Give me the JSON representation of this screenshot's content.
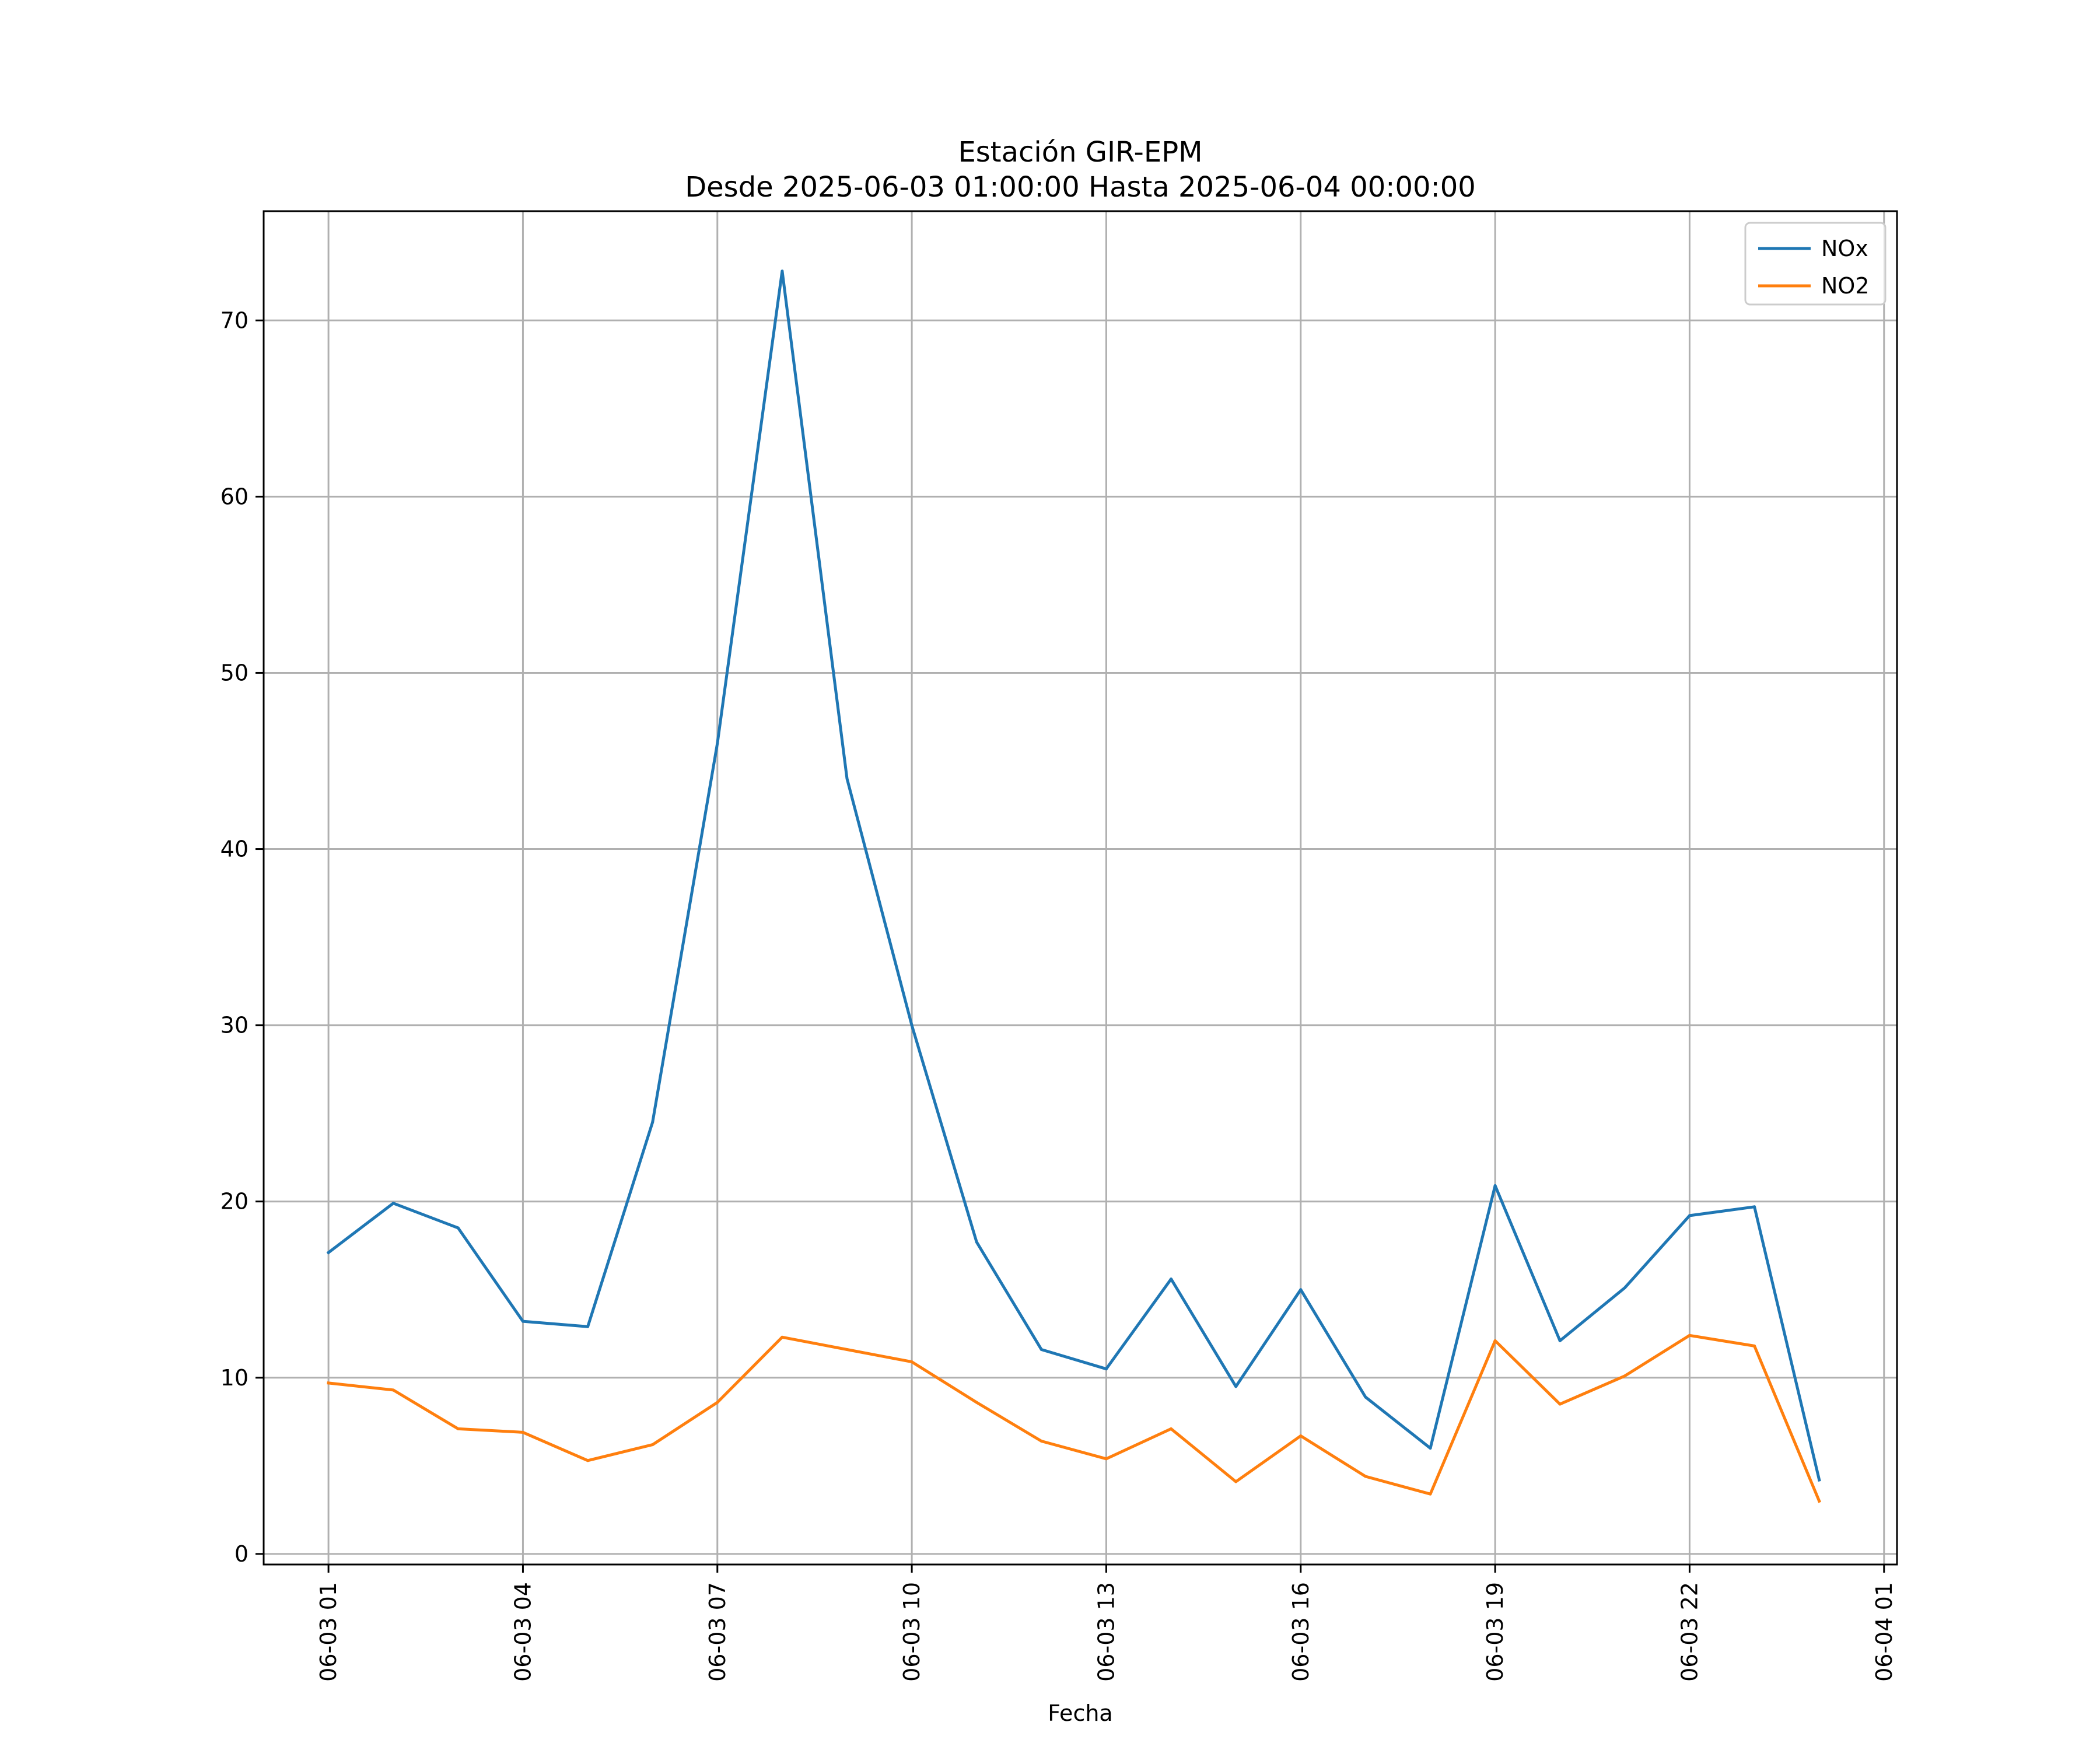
{
  "chart_data": {
    "type": "line",
    "title": "Estación GIR-EPM",
    "subtitle": "Desde 2025-06-03 01:00:00 Hasta 2025-06-04 00:00:00",
    "xlabel": "Fecha",
    "ylabel": "",
    "x": [
      "2025-06-03 01:00",
      "2025-06-03 02:00",
      "2025-06-03 03:00",
      "2025-06-03 04:00",
      "2025-06-03 05:00",
      "2025-06-03 06:00",
      "2025-06-03 07:00",
      "2025-06-03 08:00",
      "2025-06-03 09:00",
      "2025-06-03 10:00",
      "2025-06-03 11:00",
      "2025-06-03 12:00",
      "2025-06-03 13:00",
      "2025-06-03 14:00",
      "2025-06-03 15:00",
      "2025-06-03 16:00",
      "2025-06-03 17:00",
      "2025-06-03 18:00",
      "2025-06-03 19:00",
      "2025-06-03 20:00",
      "2025-06-03 21:00",
      "2025-06-03 22:00",
      "2025-06-03 23:00",
      "2025-06-04 00:00"
    ],
    "xlim": [
      "2025-06-03 00:00",
      "2025-06-04 01:12"
    ],
    "x_ticks": [
      {
        "value": "2025-06-03 01:00",
        "label": "06-03 01"
      },
      {
        "value": "2025-06-03 04:00",
        "label": "06-03 04"
      },
      {
        "value": "2025-06-03 07:00",
        "label": "06-03 07"
      },
      {
        "value": "2025-06-03 10:00",
        "label": "06-03 10"
      },
      {
        "value": "2025-06-03 13:00",
        "label": "06-03 13"
      },
      {
        "value": "2025-06-03 16:00",
        "label": "06-03 16"
      },
      {
        "value": "2025-06-03 19:00",
        "label": "06-03 19"
      },
      {
        "value": "2025-06-03 22:00",
        "label": "06-03 22"
      },
      {
        "value": "2025-06-04 01:00",
        "label": "06-04 01"
      }
    ],
    "ylim": [
      -0.6,
      76.2
    ],
    "y_ticks": [
      0,
      10,
      20,
      30,
      40,
      50,
      60,
      70
    ],
    "grid": true,
    "legend_position": "top-right",
    "series": [
      {
        "name": "NOx",
        "color": "#1f77b4",
        "values": [
          17.1,
          19.9,
          18.5,
          13.2,
          12.9,
          24.5,
          46.0,
          72.8,
          44.0,
          30.0,
          17.7,
          11.6,
          10.5,
          15.6,
          9.5,
          15.0,
          8.9,
          6.0,
          20.9,
          12.1,
          15.1,
          19.2,
          19.7,
          4.2
        ]
      },
      {
        "name": "NO2",
        "color": "#ff7f0e",
        "values": [
          9.7,
          9.3,
          7.1,
          6.9,
          5.3,
          6.2,
          8.6,
          12.3,
          11.6,
          10.9,
          8.6,
          6.4,
          5.4,
          7.1,
          4.1,
          6.7,
          4.4,
          3.4,
          12.1,
          8.5,
          10.1,
          12.4,
          11.8,
          3.0
        ]
      }
    ]
  }
}
